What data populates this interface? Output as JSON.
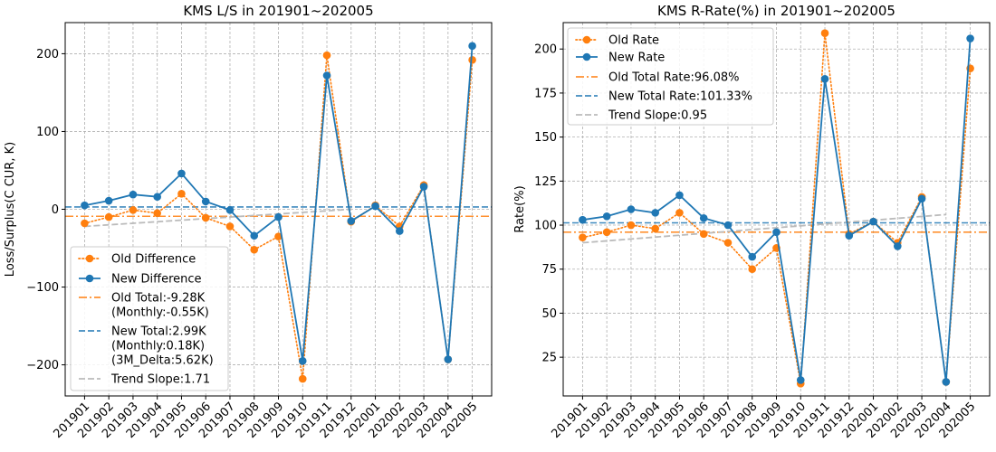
{
  "chart_data": [
    {
      "type": "line",
      "title": "KMS L/S in 201901~202005",
      "xlabel": "",
      "ylabel": "Loss/Surplus(C CUR, K)",
      "ylim": [
        -240,
        240
      ],
      "yticks": [
        -200,
        -100,
        0,
        100,
        200
      ],
      "yticklabels": [
        "−200",
        "−100",
        "0",
        "100",
        "200"
      ],
      "grid": true,
      "legend_position": "lower-left",
      "categories": [
        "201901",
        "201902",
        "201903",
        "201904",
        "201905",
        "201906",
        "201907",
        "201908",
        "201909",
        "201910",
        "201911",
        "201912",
        "202001",
        "202002",
        "202003",
        "202004",
        "202005"
      ],
      "series": [
        {
          "name": "Old Difference",
          "style": "dotted-marker",
          "color": "#ff7f0e",
          "values": [
            -18,
            -10,
            -1,
            -5,
            20,
            -11,
            -22,
            -52,
            -35,
            -218,
            198,
            -16,
            5,
            -22,
            31,
            -193,
            192
          ]
        },
        {
          "name": "New Difference",
          "style": "solid-marker",
          "color": "#1f77b4",
          "values": [
            5,
            11,
            19,
            16,
            46,
            10,
            -1,
            -34,
            -10,
            -195,
            172,
            -15,
            4,
            -28,
            29,
            -193,
            210
          ]
        }
      ],
      "hlines": [
        {
          "name": "Old Total:-9.28K\n(Monthly:-0.55K)",
          "value": -9,
          "style": "dashdot",
          "color": "#ff7f0e"
        },
        {
          "name": "New Total:2.99K\n(Monthly:0.18K)\n(3M_Delta:5.62K)",
          "value": 3,
          "style": "dashed",
          "color": "#1f77b4"
        }
      ],
      "trend": {
        "name": "Trend Slope:1.71",
        "y_start": -22,
        "y_end": 0,
        "end_index": 11,
        "color": "#bbbbbb"
      }
    },
    {
      "type": "line",
      "title": "KMS R-Rate(%) in 201901~202005",
      "xlabel": "",
      "ylabel": "Rate(%)",
      "ylim": [
        3,
        215
      ],
      "yticks": [
        25,
        50,
        75,
        100,
        125,
        150,
        175,
        200
      ],
      "yticklabels": [
        "25",
        "50",
        "75",
        "100",
        "125",
        "150",
        "175",
        "200"
      ],
      "grid": true,
      "legend_position": "upper-left",
      "categories": [
        "201901",
        "201902",
        "201903",
        "201904",
        "201905",
        "201906",
        "201907",
        "201908",
        "201909",
        "201910",
        "201911",
        "201912",
        "202001",
        "202002",
        "202003",
        "202004",
        "202005"
      ],
      "series": [
        {
          "name": "Old Rate",
          "style": "dotted-marker",
          "color": "#ff7f0e",
          "values": [
            93,
            96,
            100,
            98,
            107,
            95,
            90,
            75,
            87,
            10,
            209,
            95,
            102,
            90,
            116,
            11,
            189
          ]
        },
        {
          "name": "New Rate",
          "style": "solid-marker",
          "color": "#1f77b4",
          "values": [
            103,
            105,
            109,
            107,
            117,
            104,
            100,
            82,
            96,
            12,
            183,
            94,
            102,
            88,
            115,
            11,
            206
          ]
        }
      ],
      "hlines": [
        {
          "name": "Old Total Rate:96.08%",
          "value": 96,
          "style": "dashdot",
          "color": "#ff7f0e"
        },
        {
          "name": "New Total Rate:101.33%",
          "value": 101.3,
          "style": "dashed",
          "color": "#1f77b4"
        }
      ],
      "trend": {
        "name": "Trend Slope:0.95",
        "y_start": 90,
        "y_end": 106,
        "end_index": 15,
        "color": "#bbbbbb"
      }
    }
  ]
}
